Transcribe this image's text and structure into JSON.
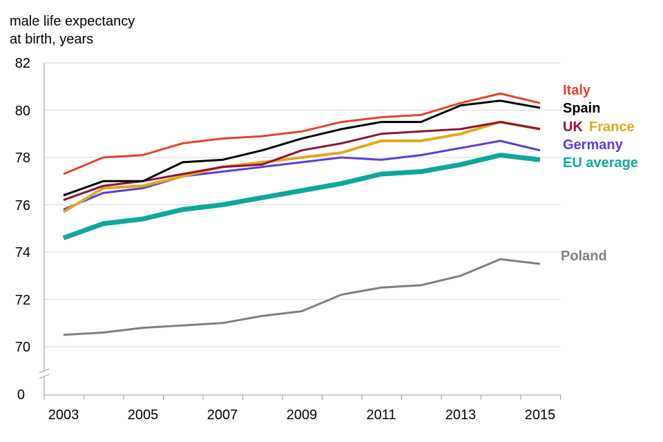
{
  "chart_data": {
    "type": "line",
    "ylabel_lines": [
      "male life expectancy",
      "at birth, years"
    ],
    "x": [
      2003,
      2004,
      2005,
      2006,
      2007,
      2008,
      2009,
      2010,
      2011,
      2012,
      2013,
      2014,
      2015
    ],
    "x_tick_labels": [
      "2003",
      "2005",
      "2007",
      "2009",
      "2011",
      "2013",
      "2015"
    ],
    "y_tick_labels": [
      "82",
      "80",
      "78",
      "76",
      "74",
      "72",
      "70",
      "0"
    ],
    "ylim": [
      70,
      82
    ],
    "axis_break": true,
    "series": [
      {
        "name": "Italy",
        "color": "#e8412b",
        "values": [
          77.3,
          78.0,
          78.1,
          78.6,
          78.8,
          78.9,
          79.1,
          79.5,
          79.7,
          79.8,
          80.3,
          80.7,
          80.3
        ]
      },
      {
        "name": "Spain",
        "color": "#000000",
        "values": [
          76.4,
          77.0,
          77.0,
          77.8,
          77.9,
          78.3,
          78.8,
          79.2,
          79.5,
          79.5,
          80.2,
          80.4,
          80.1
        ]
      },
      {
        "name": "UK",
        "color": "#8b1438",
        "values": [
          76.2,
          76.8,
          77.0,
          77.3,
          77.6,
          77.7,
          78.3,
          78.6,
          79.0,
          79.1,
          79.2,
          79.5,
          79.2
        ]
      },
      {
        "name": "France",
        "color": "#e0a81a",
        "values": [
          75.7,
          76.7,
          76.8,
          77.2,
          77.6,
          77.8,
          78.0,
          78.2,
          78.7,
          78.7,
          79.0,
          79.5,
          79.2
        ]
      },
      {
        "name": "Germany",
        "color": "#5a3bdc",
        "values": [
          75.8,
          76.5,
          76.7,
          77.2,
          77.4,
          77.6,
          77.8,
          78.0,
          77.9,
          78.1,
          78.4,
          78.7,
          78.3
        ]
      },
      {
        "name": "EU average",
        "color": "#0ea89a",
        "values": [
          74.6,
          75.2,
          75.4,
          75.8,
          76.0,
          76.3,
          76.6,
          76.9,
          77.3,
          77.4,
          77.7,
          78.1,
          77.9
        ]
      },
      {
        "name": "Poland",
        "color": "#7f7f7f",
        "values": [
          70.5,
          70.6,
          70.8,
          70.9,
          71.0,
          71.3,
          71.5,
          72.2,
          72.5,
          72.6,
          73.0,
          73.7,
          73.5
        ]
      }
    ]
  }
}
